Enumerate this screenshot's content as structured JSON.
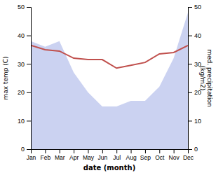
{
  "chart_data": {
    "type": "line",
    "xlabel": "date (month)",
    "ylabel": "max temp (C)",
    "y2label": "med. precipitation\n(kg/m2)",
    "categories": [
      "Jan",
      "Feb",
      "Mar",
      "Apr",
      "May",
      "Jun",
      "Jul",
      "Aug",
      "Sep",
      "Oct",
      "Nov",
      "Dec"
    ],
    "series": [
      {
        "type": "area",
        "color": "#c5cdf0",
        "values": [
          38,
          36,
          38,
          27,
          20,
          15,
          15,
          17,
          17,
          22,
          32,
          48
        ]
      },
      {
        "type": "line",
        "color": "#c0504d",
        "values": [
          36.5,
          35.0,
          34.5,
          32.0,
          31.5,
          31.5,
          28.5,
          29.5,
          30.5,
          33.5,
          34.0,
          36.5
        ]
      }
    ],
    "ylim": [
      0,
      50
    ],
    "yticks": [
      0,
      10,
      20,
      30,
      40,
      50
    ],
    "y2lim": [
      0,
      50
    ],
    "y2ticks": [
      0,
      10,
      20,
      30,
      40,
      50
    ],
    "grid": false
  }
}
